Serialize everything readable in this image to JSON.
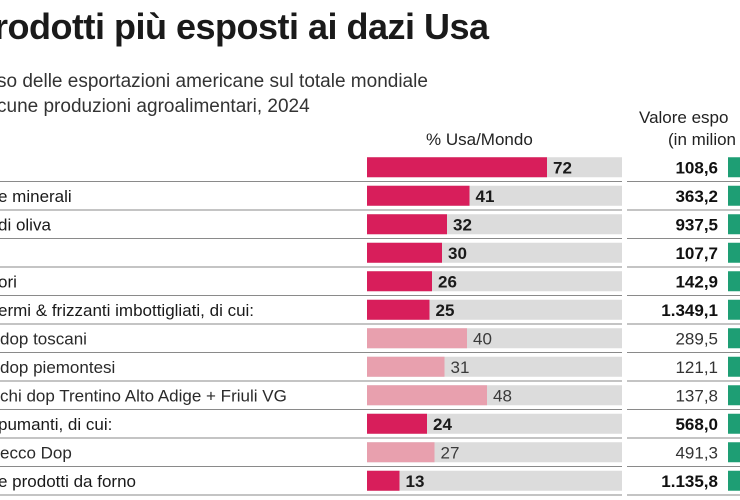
{
  "title": "rodotti più esposti ai dazi Usa",
  "subtitle_line1": "so delle esportazioni americane sul totale mondiale",
  "subtitle_line2": "cune produzioni agroalimentari, 2024",
  "column_pct": "% Usa/Mondo",
  "column_value_line1": "Valore espo",
  "column_value_line2": "(in milion",
  "colors": {
    "main_bar": "#d81e5b",
    "sub_bar": "#e8a0ae",
    "track": "#dcdcdc",
    "value_bar": "#1e9e74",
    "divider": "#8a8a8a"
  },
  "chart_data": {
    "type": "bar",
    "orientation": "horizontal",
    "title": "rodotti più esposti ai dazi Usa",
    "xlim": [
      0,
      100
    ],
    "grid": false,
    "categories": [
      "",
      "e minerali",
      "di oliva",
      "",
      "ori",
      "ermi & frizzanti imbottigliati, di cui:",
      "dop toscani",
      "dop piemontesi",
      "chi dop Trentino Alto Adige + Friuli VG",
      "pumanti, di cui:",
      "ecco Dop",
      "e prodotti da forno"
    ],
    "series": [
      {
        "name": "% Usa/Mondo",
        "values": [
          72,
          41,
          32,
          30,
          26,
          25,
          40,
          31,
          48,
          24,
          27,
          13
        ],
        "value_labels": [
          "72",
          "41",
          "32",
          "30",
          "26",
          "25",
          "40",
          "31",
          "48",
          "24",
          "27",
          "13"
        ]
      }
    ],
    "value_labels": [
      "108,6",
      "363,2",
      "937,5",
      "107,7",
      "142,9",
      "1.349,1",
      "289,5",
      "121,1",
      "137,8",
      "568,0",
      "491,3",
      "1.135,8"
    ],
    "subcategory": [
      false,
      false,
      false,
      false,
      false,
      false,
      true,
      true,
      true,
      false,
      true,
      false
    ]
  }
}
